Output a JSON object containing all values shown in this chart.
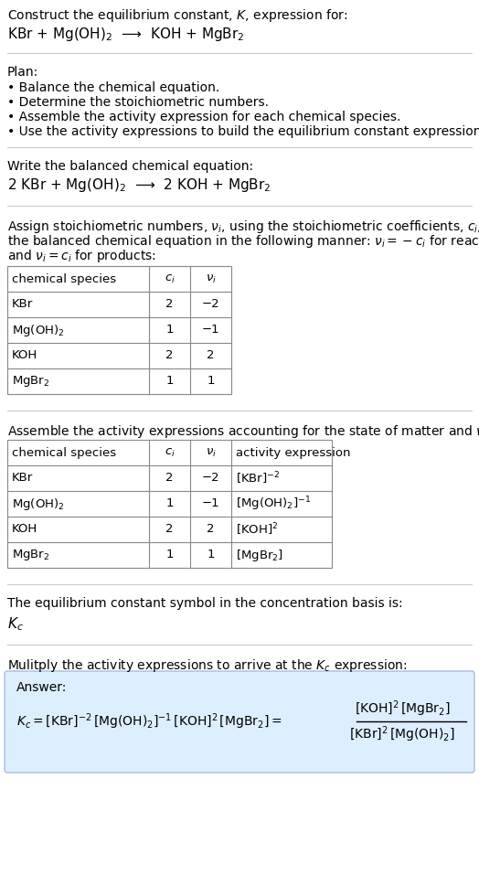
{
  "title_line1": "Construct the equilibrium constant, $K$, expression for:",
  "title_line2": "KBr + Mg(OH)$_2$  ⟶  KOH + MgBr$_2$",
  "plan_header": "Plan:",
  "plan_items": [
    "• Balance the chemical equation.",
    "• Determine the stoichiometric numbers.",
    "• Assemble the activity expression for each chemical species.",
    "• Use the activity expressions to build the equilibrium constant expression."
  ],
  "balanced_header": "Write the balanced chemical equation:",
  "balanced_eq": "2 KBr + Mg(OH)$_2$  ⟶  2 KOH + MgBr$_2$",
  "stoich_intro_lines": [
    "Assign stoichiometric numbers, $\\nu_i$, using the stoichiometric coefficients, $c_i$, from",
    "the balanced chemical equation in the following manner: $\\nu_i = -c_i$ for reactants",
    "and $\\nu_i = c_i$ for products:"
  ],
  "table1_headers": [
    "chemical species",
    "$c_i$",
    "$\\nu_i$"
  ],
  "table1_rows": [
    [
      "KBr",
      "2",
      "−2"
    ],
    [
      "Mg(OH)$_2$",
      "1",
      "−1"
    ],
    [
      "KOH",
      "2",
      "2"
    ],
    [
      "MgBr$_2$",
      "1",
      "1"
    ]
  ],
  "activity_intro": "Assemble the activity expressions accounting for the state of matter and $\\nu_i$:",
  "table2_headers": [
    "chemical species",
    "$c_i$",
    "$\\nu_i$",
    "activity expression"
  ],
  "table2_rows": [
    [
      "KBr",
      "2",
      "−2",
      "[KBr]$^{-2}$"
    ],
    [
      "Mg(OH)$_2$",
      "1",
      "−1",
      "[Mg(OH)$_2$]$^{-1}$"
    ],
    [
      "KOH",
      "2",
      "2",
      "[KOH]$^2$"
    ],
    [
      "MgBr$_2$",
      "1",
      "1",
      "[MgBr$_2$]"
    ]
  ],
  "kc_text1": "The equilibrium constant symbol in the concentration basis is:",
  "kc_symbol": "$K_c$",
  "multiply_text": "Mulitply the activity expressions to arrive at the $K_c$ expression:",
  "answer_label": "Answer:",
  "answer_box_color": "#ddeeff",
  "answer_box_border": "#aabbdd",
  "bg_color": "#ffffff",
  "text_color": "#000000",
  "sep_color": "#cccccc",
  "table_color": "#888888"
}
